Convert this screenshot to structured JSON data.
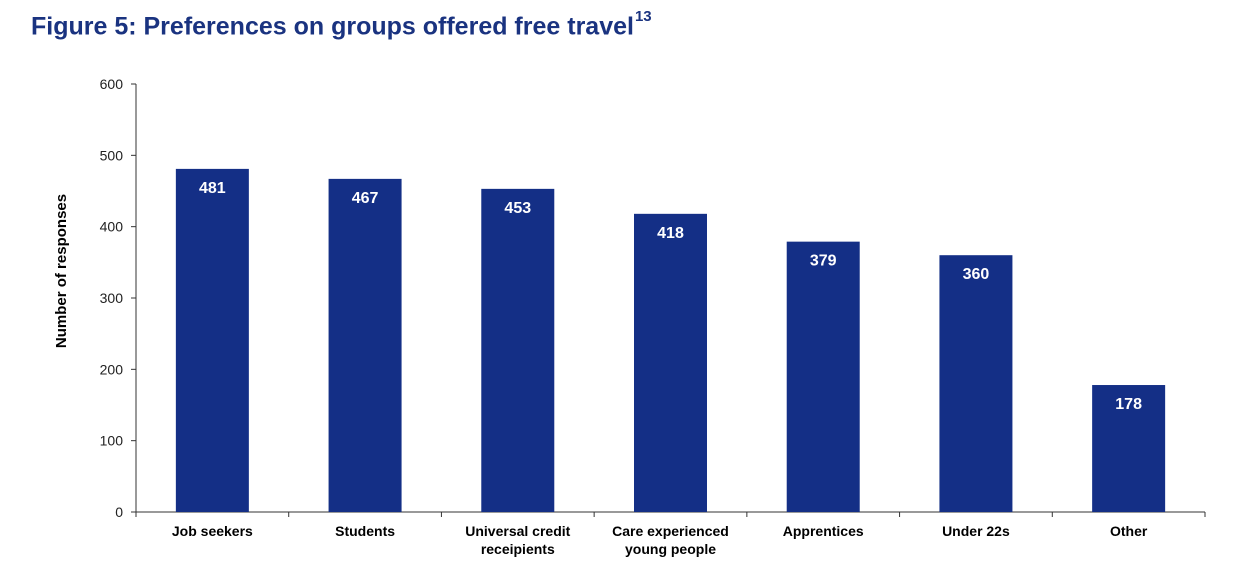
{
  "figure": {
    "title": "Figure 5: Preferences on groups offered free travel",
    "footnote_ref": "13"
  },
  "colors": {
    "bar": "#142f86",
    "title": "#1a3380",
    "axis": "#333333"
  },
  "chart_data": {
    "type": "bar",
    "title": "Figure 5: Preferences on groups offered free travel",
    "xlabel": "",
    "ylabel": "Number of responses",
    "ylim": [
      0,
      600
    ],
    "yticks": [
      0,
      100,
      200,
      300,
      400,
      500,
      600
    ],
    "grid": false,
    "legend": "none",
    "categories": [
      [
        "Job seekers"
      ],
      [
        "Students"
      ],
      [
        "Universal credit",
        "receipients"
      ],
      [
        "Care experienced",
        "young people"
      ],
      [
        "Apprentices"
      ],
      [
        "Under 22s"
      ],
      [
        "Other"
      ]
    ],
    "values": [
      481,
      467,
      453,
      418,
      379,
      360,
      178
    ],
    "data_labels": [
      "481",
      "467",
      "453",
      "418",
      "379",
      "360",
      "178"
    ]
  }
}
